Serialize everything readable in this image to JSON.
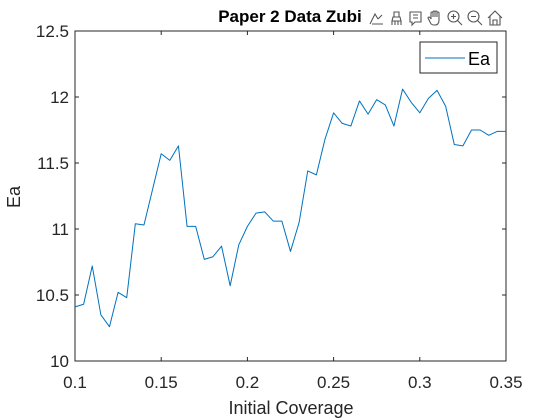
{
  "chart_data": {
    "type": "line",
    "title": "Paper 2 Data Zubi",
    "xlabel": "Initial Coverage",
    "ylabel": "Ea",
    "xlim": [
      0.1,
      0.35
    ],
    "ylim": [
      10,
      12.5
    ],
    "xticks": [
      "0.1",
      "0.15",
      "0.2",
      "0.25",
      "0.3",
      "0.35"
    ],
    "yticks": [
      "10",
      "10.5",
      "11",
      "11.5",
      "12",
      "12.5"
    ],
    "legend_position": "top-right",
    "grid": false,
    "series": [
      {
        "name": "Ea",
        "color": "#0072bd",
        "x": [
          0.1,
          0.105,
          0.11,
          0.115,
          0.12,
          0.125,
          0.13,
          0.135,
          0.14,
          0.145,
          0.15,
          0.155,
          0.16,
          0.165,
          0.17,
          0.175,
          0.18,
          0.185,
          0.19,
          0.195,
          0.2,
          0.205,
          0.21,
          0.215,
          0.22,
          0.225,
          0.23,
          0.235,
          0.24,
          0.245,
          0.25,
          0.255,
          0.26,
          0.265,
          0.27,
          0.275,
          0.28,
          0.285,
          0.29,
          0.295,
          0.3,
          0.305,
          0.31,
          0.315,
          0.32,
          0.325,
          0.33,
          0.335,
          0.34,
          0.345,
          0.35
        ],
        "y": [
          10.41,
          10.43,
          10.72,
          10.35,
          10.26,
          10.52,
          10.48,
          11.04,
          11.03,
          11.3,
          11.57,
          11.52,
          11.63,
          11.02,
          11.02,
          10.77,
          10.79,
          10.87,
          10.57,
          10.88,
          11.02,
          11.12,
          11.13,
          11.06,
          11.06,
          10.83,
          11.05,
          11.44,
          11.41,
          11.68,
          11.88,
          11.8,
          11.78,
          11.97,
          11.87,
          11.98,
          11.94,
          11.78,
          12.06,
          11.96,
          11.88,
          11.99,
          12.05,
          11.93,
          11.64,
          11.63,
          11.75,
          11.75,
          11.71,
          11.74,
          11.74
        ]
      }
    ]
  },
  "toolbar": {
    "icons": [
      "export-icon",
      "brush-icon",
      "datatip-icon",
      "pan-icon",
      "zoom-in-icon",
      "zoom-out-icon",
      "home-icon"
    ]
  }
}
